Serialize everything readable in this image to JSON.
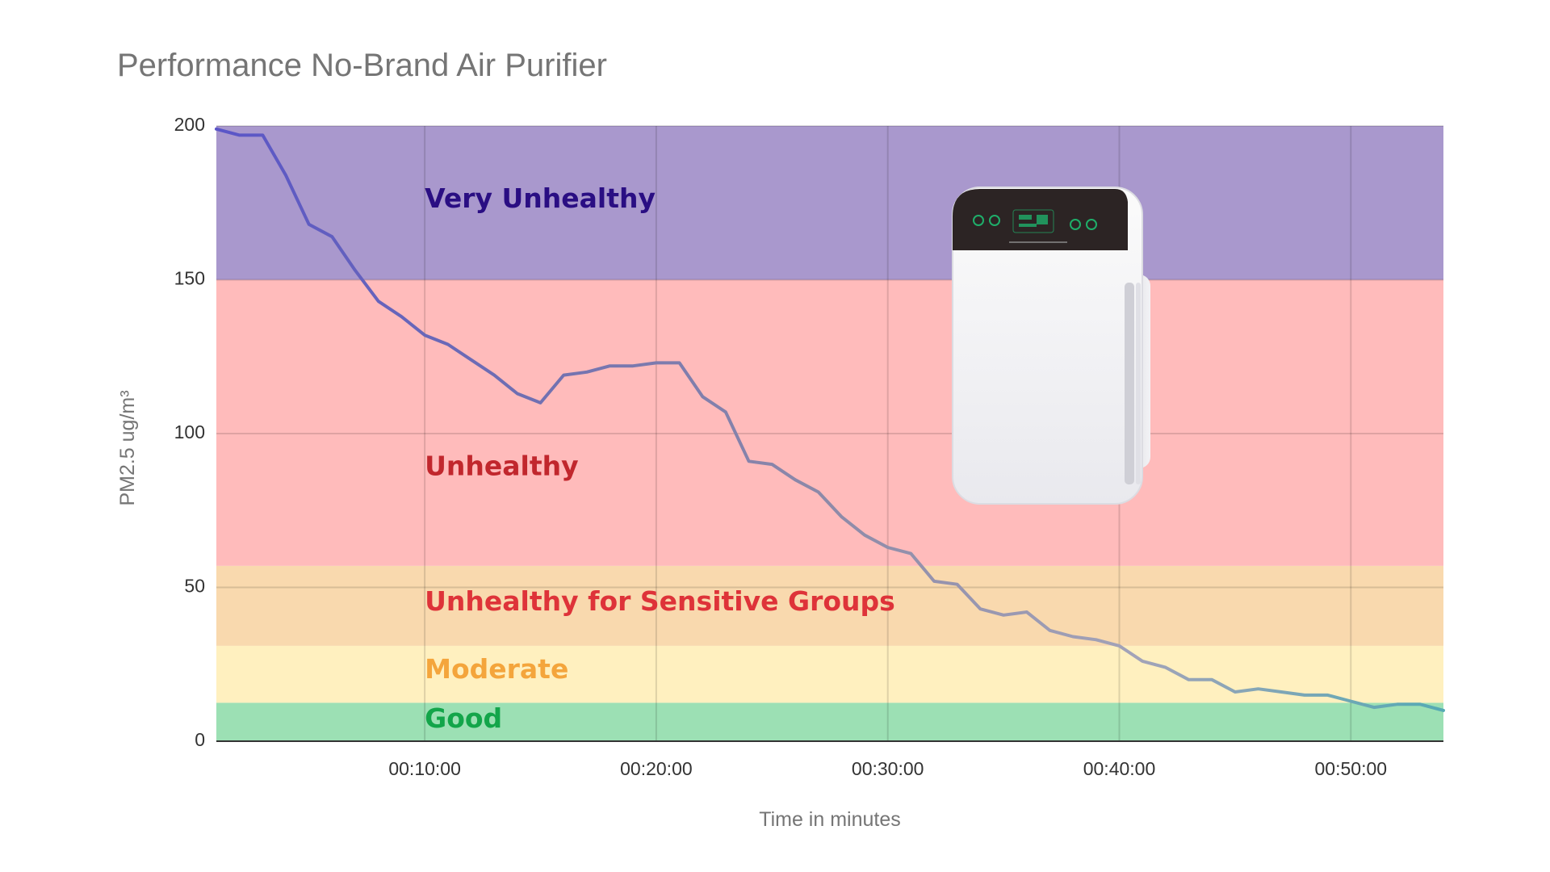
{
  "chart_data": {
    "type": "line",
    "title": "Performance No-Brand Air Purifier",
    "xlabel": "Time in minutes",
    "ylabel": "PM2.5 ug/m³",
    "xlim": [
      1,
      54
    ],
    "ylim": [
      0,
      200
    ],
    "x_ticks": [
      {
        "value": 10,
        "label": "00:10:00"
      },
      {
        "value": 20,
        "label": "00:20:00"
      },
      {
        "value": 30,
        "label": "00:30:00"
      },
      {
        "value": 40,
        "label": "00:40:00"
      },
      {
        "value": 50,
        "label": "00:50:00"
      }
    ],
    "y_ticks": [
      {
        "value": 0,
        "label": "0"
      },
      {
        "value": 50,
        "label": "50"
      },
      {
        "value": 100,
        "label": "100"
      },
      {
        "value": 150,
        "label": "150"
      },
      {
        "value": 200,
        "label": "200"
      }
    ],
    "grid": true,
    "bands": [
      {
        "label": "Good",
        "from": 0,
        "to": 12.5,
        "fill": "#9ce0b4",
        "text_color": "#13a54a",
        "label_value": 7
      },
      {
        "label": "Moderate",
        "from": 12.5,
        "to": 31,
        "fill": "#fff0bf",
        "text_color": "#f4a53c",
        "label_value": 23
      },
      {
        "label": "Unhealthy for Sensitive Groups",
        "from": 31,
        "to": 57,
        "fill": "#f9d9ae",
        "text_color": "#de3339",
        "label_value": 45
      },
      {
        "label": "Unhealthy",
        "from": 57,
        "to": 150,
        "fill": "#ffbbbb",
        "text_color": "#c1272d",
        "label_value": 89
      },
      {
        "label": "Very Unhealthy",
        "from": 150,
        "to": 200,
        "fill": "#a998cd",
        "text_color": "#2a0e83",
        "label_value": 176
      }
    ],
    "series": [
      {
        "x": [
          1,
          2,
          3,
          4,
          5,
          6,
          7,
          8,
          9,
          10,
          11,
          12,
          13,
          14,
          15,
          16,
          17,
          18,
          19,
          20,
          21,
          22,
          23,
          24,
          25,
          26,
          27,
          28,
          29,
          30,
          31,
          32,
          33,
          34,
          35,
          36,
          37,
          38,
          39,
          40,
          41,
          42,
          43,
          44,
          45,
          46,
          47,
          48,
          49,
          50,
          51,
          52,
          53,
          54
        ],
        "values": [
          199,
          197,
          197,
          184,
          168,
          164,
          153,
          143,
          138,
          132,
          129,
          124,
          119,
          113,
          110,
          119,
          120,
          122,
          122,
          123,
          123,
          112,
          107,
          91,
          90,
          85,
          81,
          73,
          67,
          63,
          61,
          52,
          51,
          43,
          41,
          42,
          36,
          34,
          33,
          31,
          26,
          24,
          20,
          20,
          16,
          17,
          16,
          15,
          15,
          13,
          11,
          12,
          12,
          10
        ]
      }
    ],
    "line_colors": [
      "#5a55c8",
      "#6f6fb2",
      "#8e8aa8",
      "#a3a3b8",
      "#55aab4"
    ],
    "image": {
      "name": "air-purifier-photo"
    }
  }
}
